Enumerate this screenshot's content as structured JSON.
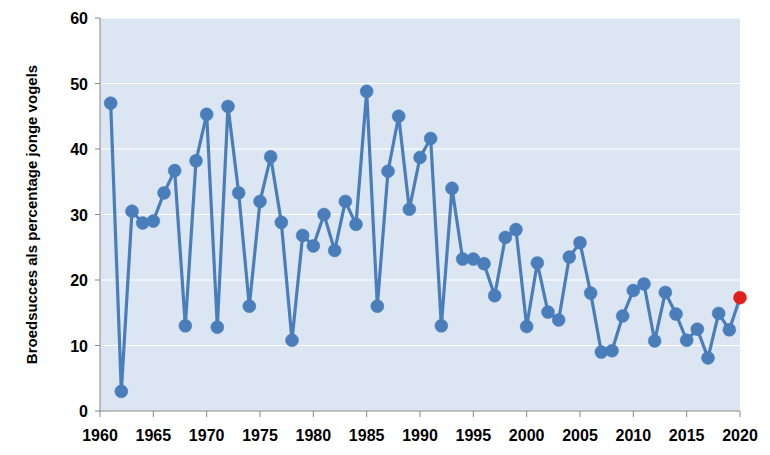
{
  "chart_data": {
    "type": "line",
    "ylabel": "Broedsucces als percentage jonge vogels",
    "x": [
      1961,
      1962,
      1963,
      1964,
      1965,
      1966,
      1967,
      1968,
      1969,
      1970,
      1971,
      1972,
      1973,
      1974,
      1975,
      1976,
      1977,
      1978,
      1979,
      1980,
      1981,
      1982,
      1983,
      1984,
      1985,
      1986,
      1987,
      1988,
      1989,
      1990,
      1991,
      1992,
      1993,
      1994,
      1995,
      1996,
      1997,
      1998,
      1999,
      2000,
      2001,
      2002,
      2003,
      2004,
      2005,
      2006,
      2007,
      2008,
      2009,
      2010,
      2011,
      2012,
      2013,
      2014,
      2015,
      2016,
      2017,
      2018,
      2019,
      2020
    ],
    "series": [
      {
        "color": "#4a7ebb",
        "marker": "circle",
        "line_style": "solid",
        "values": [
          47,
          3,
          30.5,
          28.7,
          29,
          33.3,
          36.7,
          13,
          38.2,
          45.3,
          12.8,
          46.5,
          33.3,
          16,
          32,
          38.8,
          28.8,
          10.8,
          26.8,
          25.2,
          30,
          24.5,
          32,
          28.5,
          48.8,
          16,
          36.6,
          45,
          30.8,
          38.7,
          41.6,
          13,
          34,
          23.2,
          23.2,
          22.5,
          17.6,
          26.5,
          27.7,
          12.9,
          22.6,
          15.1,
          13.9,
          23.5,
          25.7,
          18,
          9,
          9.2,
          14.5,
          18.4,
          19.4,
          10.7,
          18.1,
          14.8,
          10.8,
          12.5,
          8.1,
          14.9,
          12.4,
          17.3
        ],
        "colors": [
          "#4a7ebb",
          "#4a7ebb",
          "#4a7ebb",
          "#4a7ebb",
          "#4a7ebb",
          "#4a7ebb",
          "#4a7ebb",
          "#4a7ebb",
          "#4a7ebb",
          "#4a7ebb",
          "#4a7ebb",
          "#4a7ebb",
          "#4a7ebb",
          "#4a7ebb",
          "#4a7ebb",
          "#4a7ebb",
          "#4a7ebb",
          "#4a7ebb",
          "#4a7ebb",
          "#4a7ebb",
          "#4a7ebb",
          "#4a7ebb",
          "#4a7ebb",
          "#4a7ebb",
          "#4a7ebb",
          "#4a7ebb",
          "#4a7ebb",
          "#4a7ebb",
          "#4a7ebb",
          "#4a7ebb",
          "#4a7ebb",
          "#4a7ebb",
          "#4a7ebb",
          "#4a7ebb",
          "#4a7ebb",
          "#4a7ebb",
          "#4a7ebb",
          "#4a7ebb",
          "#4a7ebb",
          "#4a7ebb",
          "#4a7ebb",
          "#4a7ebb",
          "#4a7ebb",
          "#4a7ebb",
          "#4a7ebb",
          "#4a7ebb",
          "#4a7ebb",
          "#4a7ebb",
          "#4a7ebb",
          "#4a7ebb",
          "#4a7ebb",
          "#4a7ebb",
          "#4a7ebb",
          "#4a7ebb",
          "#4a7ebb",
          "#4a7ebb",
          "#4a7ebb",
          "#4a7ebb",
          "#4a7ebb",
          "#e0201c"
        ]
      }
    ],
    "xlim": [
      1960,
      2020
    ],
    "xticks": [
      1960,
      1965,
      1970,
      1975,
      1980,
      1985,
      1990,
      1995,
      2000,
      2005,
      2010,
      2015,
      2020
    ],
    "ylim": [
      0,
      60
    ],
    "yticks": [
      0,
      10,
      20,
      30,
      40,
      50,
      60
    ],
    "grid": true
  }
}
